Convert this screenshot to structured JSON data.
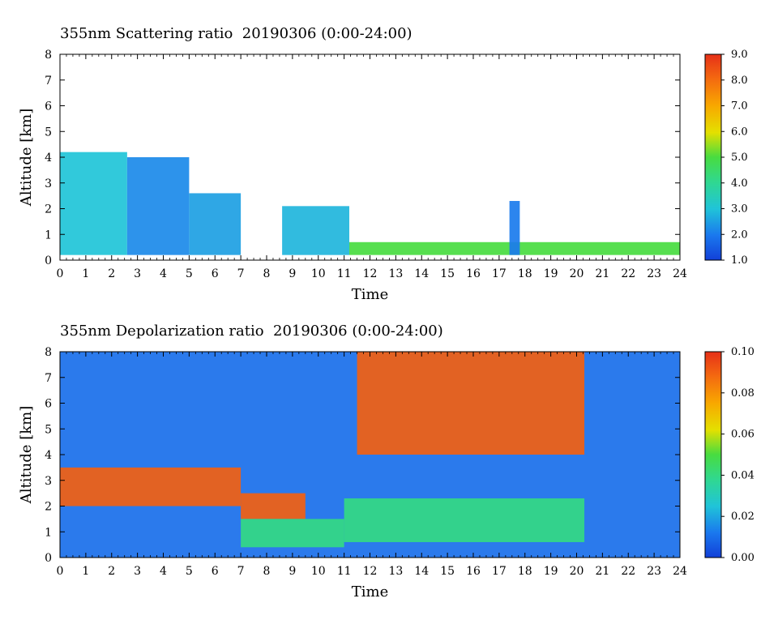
{
  "chart_data": [
    {
      "type": "heatmap",
      "title": "355nm Scattering ratio  20190306 (0:00-24:00)",
      "xlabel": "Time",
      "ylabel": "Altitude [km]",
      "xlim": [
        0,
        24
      ],
      "ylim": [
        0,
        8
      ],
      "xticks": [
        "0",
        "1",
        "2",
        "3",
        "4",
        "5",
        "6",
        "7",
        "8",
        "9",
        "10",
        "11",
        "12",
        "13",
        "14",
        "15",
        "16",
        "17",
        "18",
        "19",
        "20",
        "21",
        "22",
        "23",
        "24"
      ],
      "yticks": [
        "0",
        "1",
        "2",
        "3",
        "4",
        "5",
        "6",
        "7",
        "8"
      ],
      "colorbar": {
        "min": 1.0,
        "max": 9.0,
        "labels": [
          "1.0",
          "2.0",
          "3.0",
          "4.0",
          "5.0",
          "6.0",
          "7.0",
          "8.0",
          "9.0"
        ]
      },
      "features": [
        {
          "x": [
            0,
            2.6
          ],
          "y": [
            0.2,
            4.2
          ],
          "value": 3.0
        },
        {
          "x": [
            2.6,
            5.0
          ],
          "y": [
            0.2,
            4.0
          ],
          "value": 2.2
        },
        {
          "x": [
            5.0,
            7.0
          ],
          "y": [
            0.2,
            2.6
          ],
          "value": 2.5
        },
        {
          "x": [
            8.6,
            11.2
          ],
          "y": [
            0.2,
            2.1
          ],
          "value": 2.8
        },
        {
          "x": [
            11.2,
            24
          ],
          "y": [
            0.2,
            0.7
          ],
          "value": 5.0
        },
        {
          "x": [
            17.4,
            17.8
          ],
          "y": [
            0.2,
            2.3
          ],
          "value": 2.0
        }
      ]
    },
    {
      "type": "heatmap",
      "title": "355nm Depolarization ratio  20190306 (0:00-24:00)",
      "xlabel": "Time",
      "ylabel": "Altitude [km]",
      "xlim": [
        0,
        24
      ],
      "ylim": [
        0,
        8
      ],
      "xticks": [
        "0",
        "1",
        "2",
        "3",
        "4",
        "5",
        "6",
        "7",
        "8",
        "9",
        "10",
        "11",
        "12",
        "13",
        "14",
        "15",
        "16",
        "17",
        "18",
        "19",
        "20",
        "21",
        "22",
        "23",
        "24"
      ],
      "yticks": [
        "0",
        "1",
        "2",
        "3",
        "4",
        "5",
        "6",
        "7",
        "8"
      ],
      "colorbar": {
        "min": 0.0,
        "max": 0.1,
        "labels": [
          "0.00",
          "0.02",
          "0.04",
          "0.06",
          "0.08",
          "0.10"
        ]
      },
      "features": [
        {
          "x": [
            0,
            24
          ],
          "y": [
            0,
            8
          ],
          "value": 0.01
        },
        {
          "x": [
            0,
            7
          ],
          "y": [
            2.0,
            3.5
          ],
          "value": 0.09
        },
        {
          "x": [
            7,
            9.5
          ],
          "y": [
            1.5,
            2.5
          ],
          "value": 0.09
        },
        {
          "x": [
            11.5,
            20.3
          ],
          "y": [
            4.0,
            8.0
          ],
          "value": 0.09
        },
        {
          "x": [
            11,
            20.3
          ],
          "y": [
            0.6,
            2.3
          ],
          "value": 0.04
        },
        {
          "x": [
            7,
            11
          ],
          "y": [
            0.4,
            1.5
          ],
          "value": 0.04
        }
      ]
    }
  ]
}
